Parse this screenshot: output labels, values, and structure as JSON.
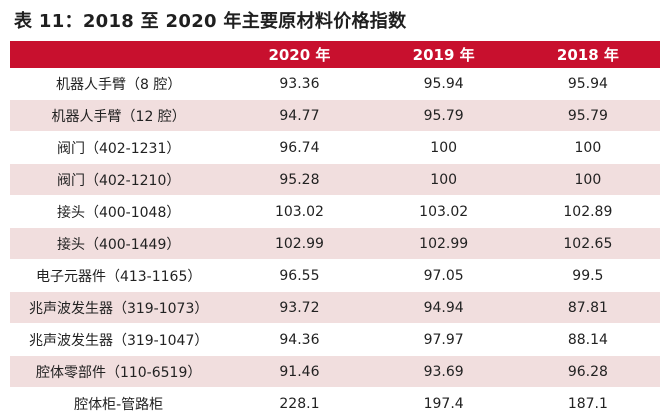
{
  "title": "表 11：2018 至 2020 年主要原材料价格指数",
  "table": {
    "headers": [
      "",
      "2020 年",
      "2019 年",
      "2018 年"
    ],
    "rows": [
      {
        "name": "机器人手臂（8 腔）",
        "v2020": "93.36",
        "v2019": "95.94",
        "v2018": "95.94"
      },
      {
        "name": "机器人手臂（12 腔）",
        "v2020": "94.77",
        "v2019": "95.79",
        "v2018": "95.79"
      },
      {
        "name": "阀门（402-1231）",
        "v2020": "96.74",
        "v2019": "100",
        "v2018": "100"
      },
      {
        "name": "阀门（402-1210）",
        "v2020": "95.28",
        "v2019": "100",
        "v2018": "100"
      },
      {
        "name": "接头（400-1048）",
        "v2020": "103.02",
        "v2019": "103.02",
        "v2018": "102.89"
      },
      {
        "name": "接头（400-1449）",
        "v2020": "102.99",
        "v2019": "102.99",
        "v2018": "102.65"
      },
      {
        "name": "电子元器件（413-1165）",
        "v2020": "96.55",
        "v2019": "97.05",
        "v2018": "99.5"
      },
      {
        "name": "兆声波发生器（319-1073）",
        "v2020": "93.72",
        "v2019": "94.94",
        "v2018": "87.81"
      },
      {
        "name": "兆声波发生器（319-1047）",
        "v2020": "94.36",
        "v2019": "97.97",
        "v2018": "88.14"
      },
      {
        "name": "腔体零部件（110-6519）",
        "v2020": "91.46",
        "v2019": "93.69",
        "v2018": "96.28"
      },
      {
        "name": "腔体柜-管路柜",
        "v2020": "228.1",
        "v2019": "197.4",
        "v2018": "187.1"
      }
    ]
  },
  "colors": {
    "header_bg": "#c8102e",
    "stripe_bg": "#f1dede"
  }
}
